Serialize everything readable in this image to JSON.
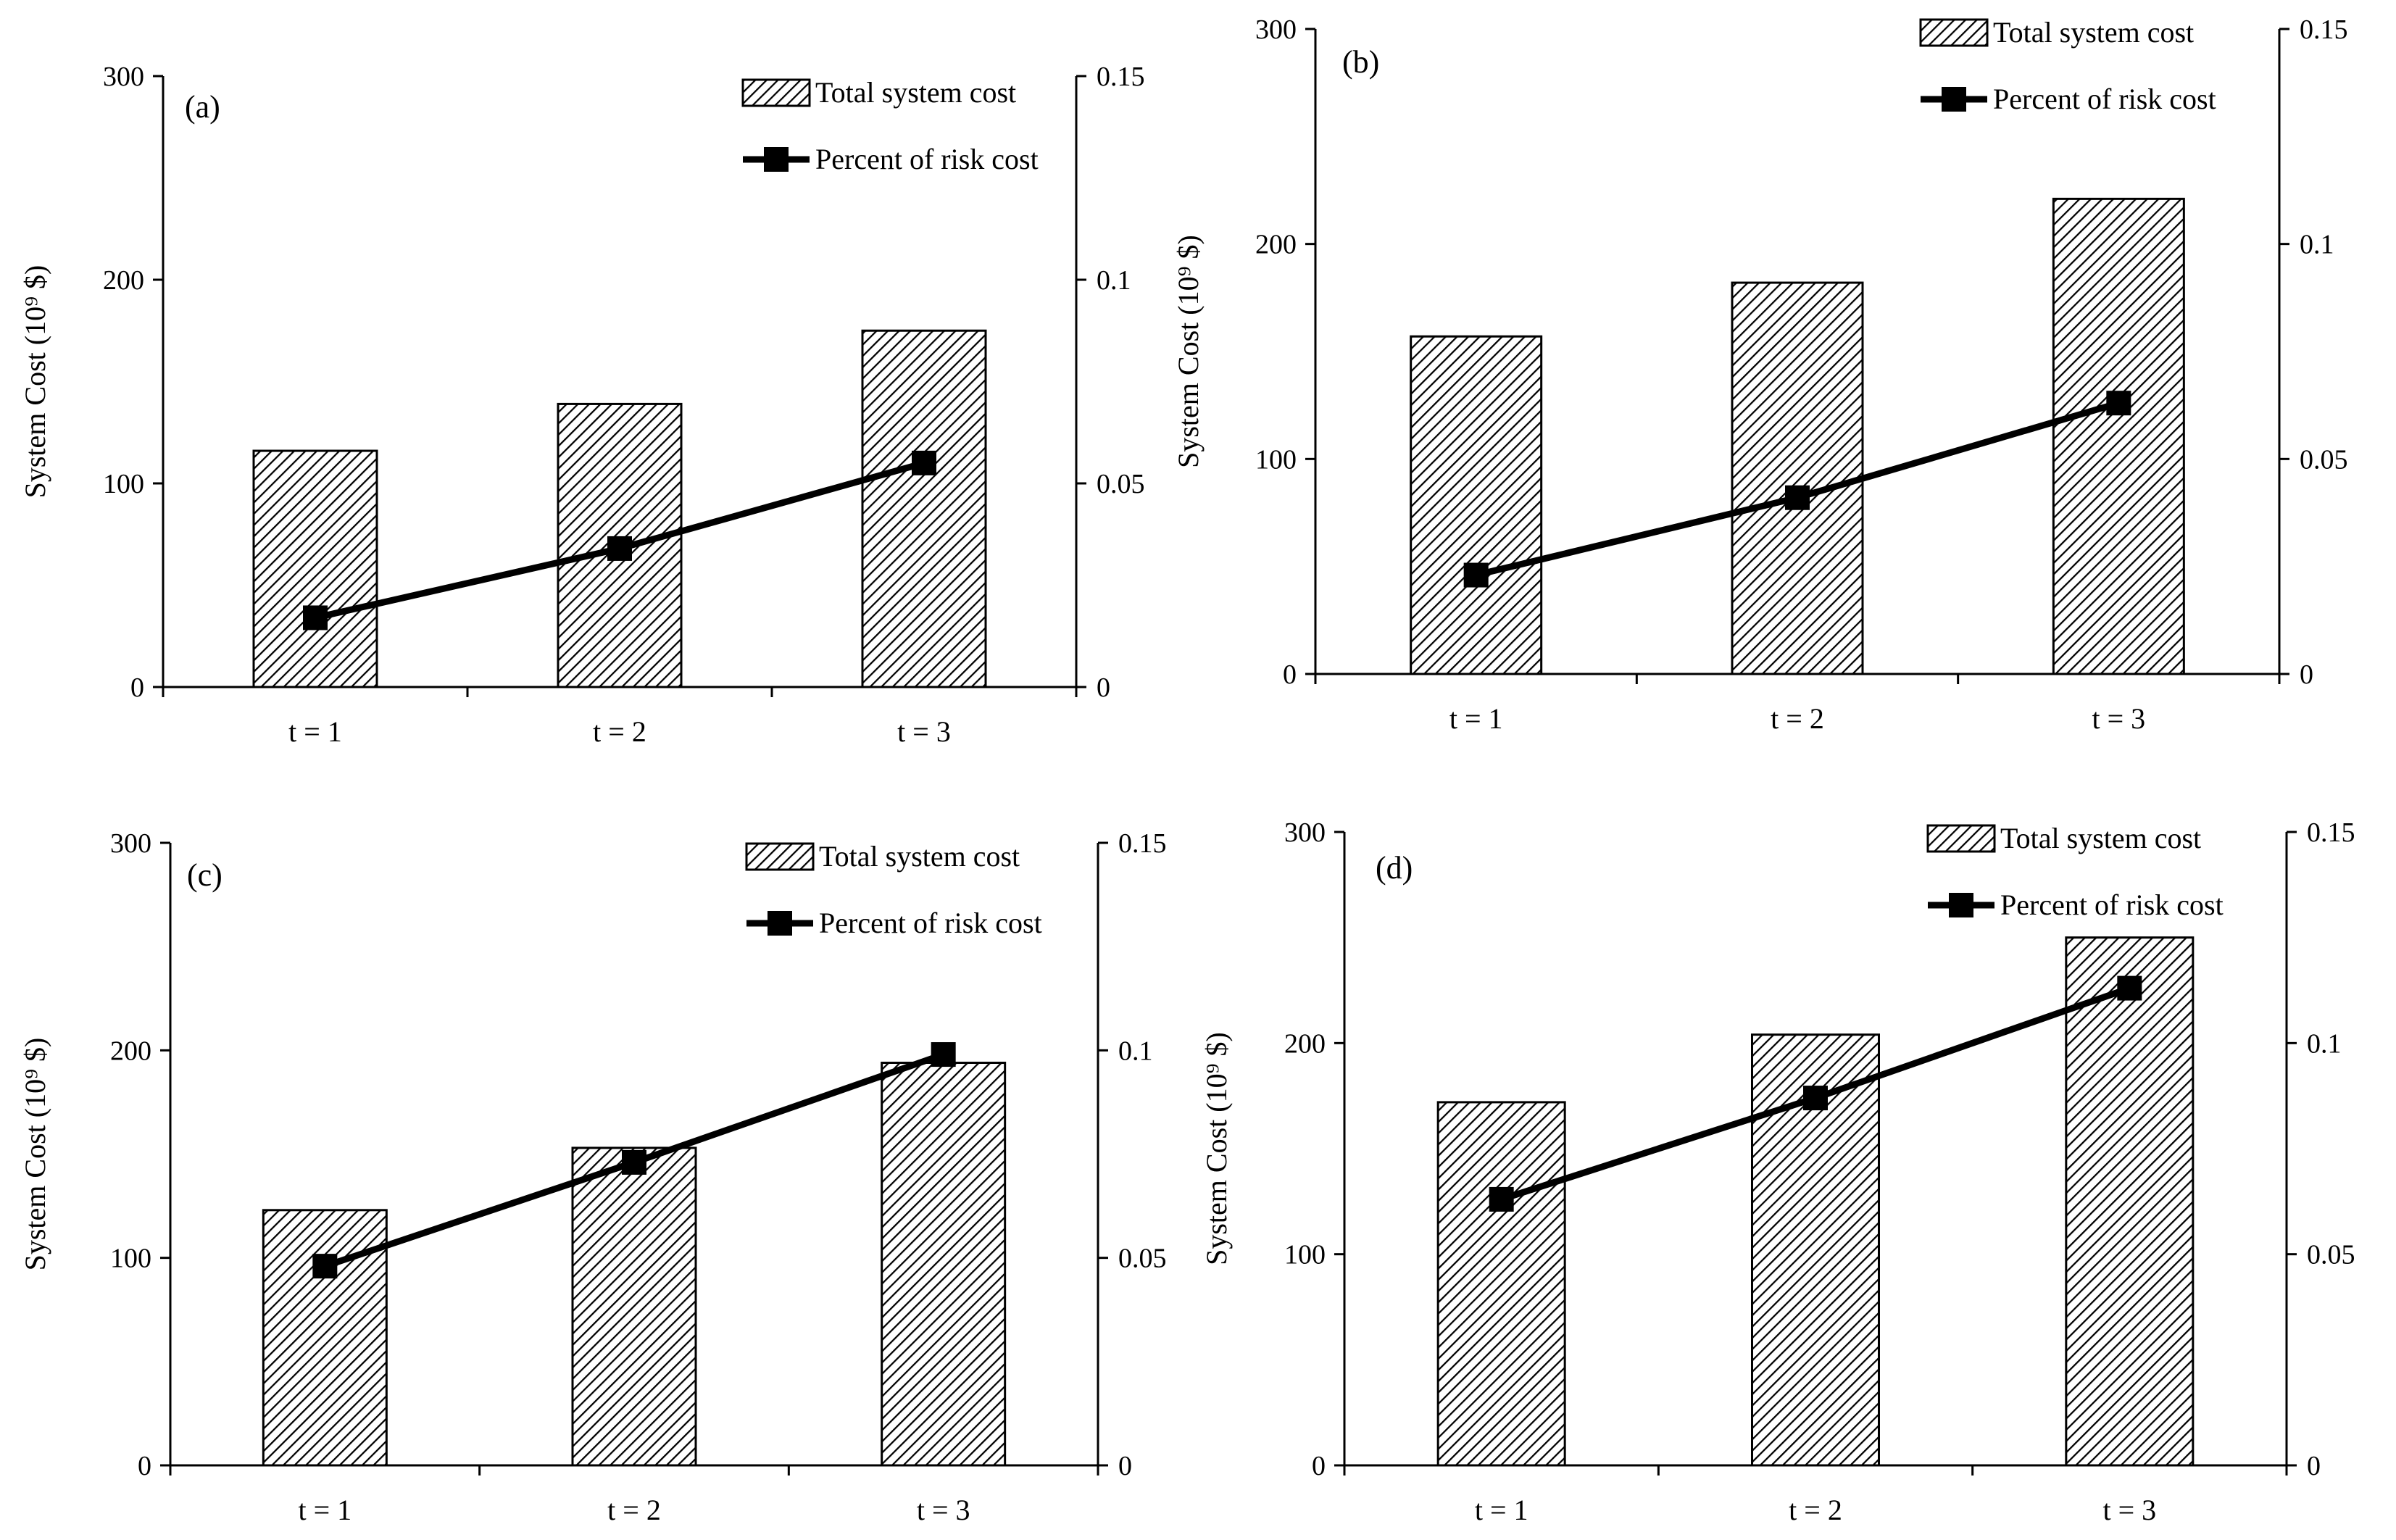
{
  "chart_data": [
    {
      "type": "bar",
      "panel_label": "(a)",
      "categories": [
        "t = 1",
        "t = 2",
        "t = 3"
      ],
      "series": [
        {
          "name": "Total system cost",
          "type": "bar",
          "axis": "left",
          "values": [
            116,
            139,
            175
          ]
        },
        {
          "name": "Percent of risk cost",
          "type": "line",
          "axis": "right",
          "values": [
            0.017,
            0.034,
            0.055
          ]
        }
      ],
      "ylabel": "System Cost (10⁹ $)",
      "ylim": [
        0,
        300
      ],
      "yticks": [
        "0",
        "100",
        "200",
        "300"
      ],
      "y2lim": [
        0,
        0.15
      ],
      "y2ticks": [
        "0",
        "0.05",
        "0.1",
        "0.15"
      ],
      "legend": "top-right"
    },
    {
      "type": "bar",
      "panel_label": "(b)",
      "categories": [
        "t = 1",
        "t = 2",
        "t = 3"
      ],
      "series": [
        {
          "name": "Total system cost",
          "type": "bar",
          "axis": "left",
          "values": [
            157,
            182,
            221
          ]
        },
        {
          "name": "Percent of risk cost",
          "type": "line",
          "axis": "right",
          "values": [
            0.023,
            0.041,
            0.063
          ]
        }
      ],
      "ylabel": "System Cost (10⁹ $)",
      "ylim": [
        0,
        300
      ],
      "yticks": [
        "0",
        "100",
        "200",
        "300"
      ],
      "y2lim": [
        0,
        0.15
      ],
      "y2ticks": [
        "0",
        "0.05",
        "0.1",
        "0.15"
      ],
      "legend": "top-right"
    },
    {
      "type": "bar",
      "panel_label": "(c)",
      "categories": [
        "t = 1",
        "t = 2",
        "t = 3"
      ],
      "series": [
        {
          "name": "Total system cost",
          "type": "bar",
          "axis": "left",
          "values": [
            123,
            153,
            194
          ]
        },
        {
          "name": "Percent of risk cost",
          "type": "line",
          "axis": "right",
          "values": [
            0.048,
            0.073,
            0.099
          ]
        }
      ],
      "ylabel": "System Cost (10⁹ $)",
      "ylim": [
        0,
        300
      ],
      "yticks": [
        "0",
        "100",
        "200",
        "300"
      ],
      "y2lim": [
        0,
        0.15
      ],
      "y2ticks": [
        "0",
        "0.05",
        "0.1",
        "0.15"
      ],
      "legend": "top-right"
    },
    {
      "type": "bar",
      "panel_label": "(d)",
      "categories": [
        "t = 1",
        "t = 2",
        "t = 3"
      ],
      "series": [
        {
          "name": "Total system cost",
          "type": "bar",
          "axis": "left",
          "values": [
            172,
            204,
            250
          ]
        },
        {
          "name": "Percent of risk cost",
          "type": "line",
          "axis": "right",
          "values": [
            0.063,
            0.087,
            0.113
          ]
        }
      ],
      "ylabel": "System Cost (10⁹ $)",
      "ylim": [
        0,
        300
      ],
      "yticks": [
        "0",
        "100",
        "200",
        "300"
      ],
      "y2lim": [
        0,
        0.15
      ],
      "y2ticks": [
        "0",
        "0.05",
        "0.1",
        "0.15"
      ],
      "legend": "top-right"
    }
  ]
}
